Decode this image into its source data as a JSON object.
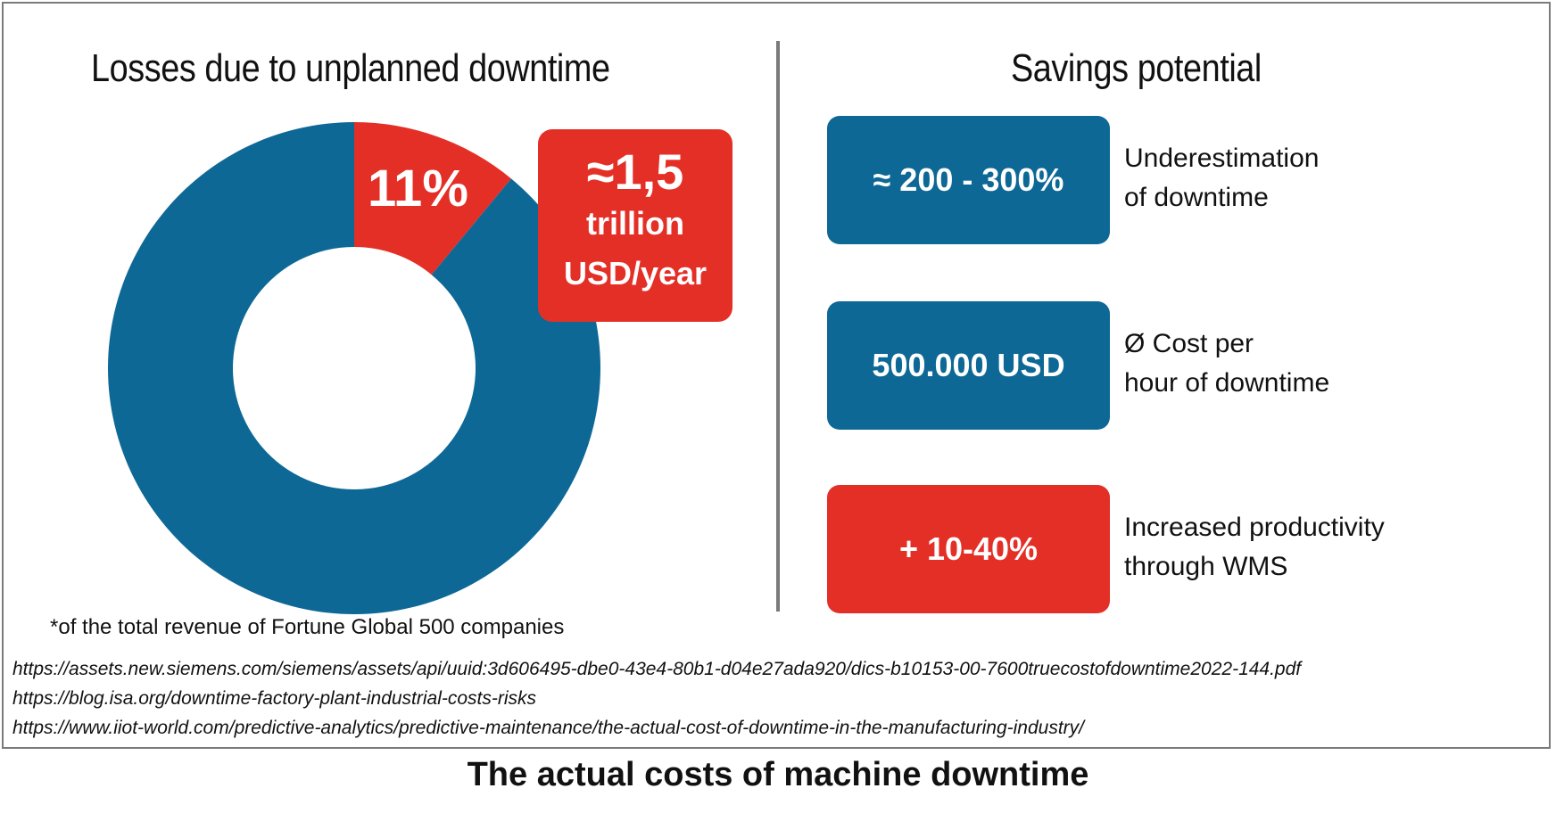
{
  "left_panel": {
    "title": "Losses due to unplanned downtime",
    "callout": {
      "value": "≈1,5",
      "line1": "trillion",
      "line2": "USD/year"
    },
    "footnote": "*of the total revenue of Fortune Global 500 companies"
  },
  "right_panel": {
    "title": "Savings potential",
    "items": [
      {
        "value": "≈ 200 - 300%",
        "desc_line1": "Underestimation",
        "desc_line2": "of downtime",
        "color": "#0e6896"
      },
      {
        "value": "500.000 USD",
        "desc_line1": "Ø Cost per",
        "desc_line2": "hour of downtime",
        "color": "#0e6896"
      },
      {
        "value": "+ 10-40%",
        "desc_line1": "Increased productivity",
        "desc_line2": "through WMS",
        "color": "#e42f27"
      }
    ]
  },
  "sources": [
    "https://assets.new.siemens.com/siemens/assets/api/uuid:3d606495-dbe0-43e4-80b1-d04e27ada920/dics-b10153-00-7600truecostofdowntime2022-144.pdf",
    "https://blog.isa.org/downtime-factory-plant-industrial-costs-risks",
    "https://www.iiot-world.com/predictive-analytics/predictive-maintenance/the-actual-cost-of-downtime-in-the-manufacturing-industry/"
  ],
  "caption": "The actual costs of machine downtime",
  "chart_data": {
    "type": "pie",
    "title": "Losses due to unplanned downtime",
    "slices": [
      {
        "label": "11%",
        "value": 11,
        "color": "#e42f27"
      },
      {
        "label": "",
        "value": 89,
        "color": "#0e6896"
      }
    ],
    "legend": "none"
  }
}
